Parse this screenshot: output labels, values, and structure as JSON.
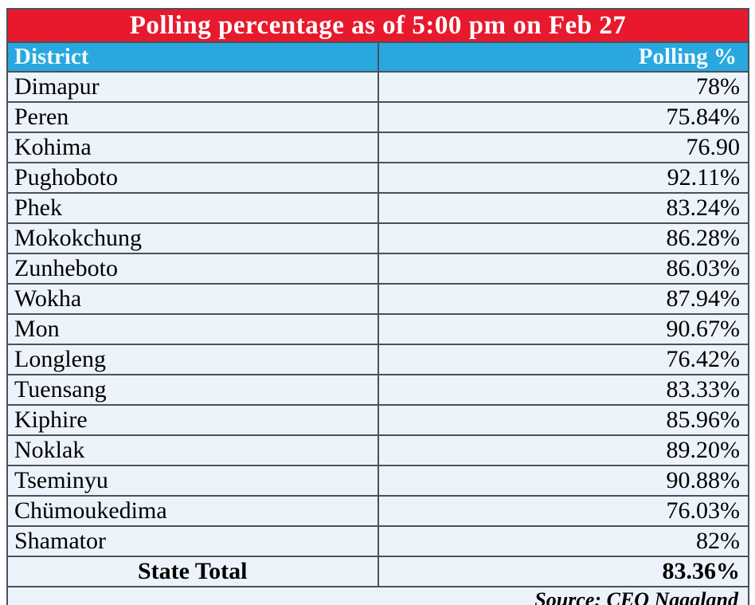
{
  "colors": {
    "title_bg": "#e8192c",
    "title_text": "#ffffff",
    "header_bg": "#29a7de",
    "header_text": "#eefaff",
    "row_bg": "#ecf3fa",
    "border": "#49525c"
  },
  "chart_data": {
    "type": "table",
    "title": "Polling percentage as of 5:00 pm on Feb 27",
    "columns": [
      "District",
      "Polling %"
    ],
    "rows": [
      {
        "district": "Dimapur",
        "polling": "78%"
      },
      {
        "district": "Peren",
        "polling": "75.84%"
      },
      {
        "district": "Kohima",
        "polling": "76.90"
      },
      {
        "district": "Pughoboto",
        "polling": "92.11%"
      },
      {
        "district": "Phek",
        "polling": "83.24%"
      },
      {
        "district": "Mokokchung",
        "polling": "86.28%"
      },
      {
        "district": "Zunheboto",
        "polling": "86.03%"
      },
      {
        "district": "Wokha",
        "polling": "87.94%"
      },
      {
        "district": "Mon",
        "polling": "90.67%"
      },
      {
        "district": "Longleng",
        "polling": "76.42%"
      },
      {
        "district": "Tuensang",
        "polling": "83.33%"
      },
      {
        "district": "Kiphire",
        "polling": "85.96%"
      },
      {
        "district": "Noklak",
        "polling": "89.20%"
      },
      {
        "district": "Tseminyu",
        "polling": "90.88%"
      },
      {
        "district": "Chümoukedima",
        "polling": "76.03%"
      },
      {
        "district": "Shamator",
        "polling": "82%"
      }
    ],
    "total": {
      "label": "State Total",
      "value": "83.36%"
    },
    "source": "Source: CEO Nagaland"
  }
}
